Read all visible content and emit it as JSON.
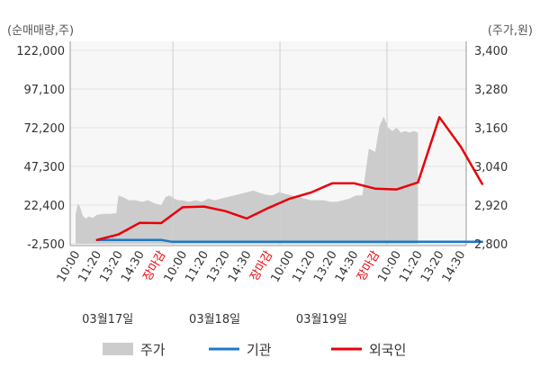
{
  "chart_data": {
    "type": "line",
    "left_unit": "(순매매량,주)",
    "right_unit": "(주가,원)",
    "y_left": {
      "ticks": [
        122000,
        97100,
        72200,
        47300,
        22400,
        -2500
      ],
      "tick_labels": [
        "122,000",
        "97,100",
        "72,200",
        "47,300",
        "22,400",
        "-2,500"
      ],
      "range": [
        -2500,
        122000
      ]
    },
    "y_right": {
      "ticks": [
        3400,
        3280,
        3160,
        3040,
        2920,
        2800
      ],
      "tick_labels": [
        "3,400",
        "3,280",
        "3,160",
        "3,040",
        "2,920",
        "2,800"
      ],
      "range": [
        2800,
        3400
      ]
    },
    "x_ticks": [
      {
        "label": "10:00",
        "pos": 0,
        "color": "#333333"
      },
      {
        "label": "11:20",
        "pos": 1,
        "color": "#333333"
      },
      {
        "label": "13:20",
        "pos": 2,
        "color": "#333333"
      },
      {
        "label": "14:30",
        "pos": 3,
        "color": "#333333"
      },
      {
        "label": "장마감",
        "pos": 4,
        "color": "#e8000b"
      },
      {
        "label": "10:00",
        "pos": 5,
        "color": "#333333"
      },
      {
        "label": "11:20",
        "pos": 6,
        "color": "#333333"
      },
      {
        "label": "13:20",
        "pos": 7,
        "color": "#333333"
      },
      {
        "label": "14:30",
        "pos": 8,
        "color": "#333333"
      },
      {
        "label": "장마감",
        "pos": 9,
        "color": "#e8000b"
      },
      {
        "label": "10:00",
        "pos": 10,
        "color": "#333333"
      },
      {
        "label": "11:20",
        "pos": 11,
        "color": "#333333"
      },
      {
        "label": "13:20",
        "pos": 12,
        "color": "#333333"
      },
      {
        "label": "14:30",
        "pos": 13,
        "color": "#333333"
      },
      {
        "label": "장마감",
        "pos": 14,
        "color": "#e8000b"
      },
      {
        "label": "10:00",
        "pos": 15,
        "color": "#333333"
      },
      {
        "label": "11:20",
        "pos": 16,
        "color": "#333333"
      },
      {
        "label": "13:20",
        "pos": 17,
        "color": "#333333"
      },
      {
        "label": "14:30",
        "pos": 18,
        "color": "#333333"
      }
    ],
    "date_labels": [
      {
        "label": "03월17일",
        "pos": 1.5
      },
      {
        "label": "03월18일",
        "pos": 6.5
      },
      {
        "label": "03월19일",
        "pos": 11.5
      }
    ],
    "series": [
      {
        "name": "주가",
        "axis": "right",
        "kind": "area",
        "color": "#cccccc",
        "x": [
          0,
          0.1,
          0.2,
          0.35,
          0.5,
          0.6,
          0.8,
          1,
          1.3,
          1.6,
          1.9,
          2.0,
          2.2,
          2.5,
          2.8,
          3.1,
          3.4,
          3.7,
          4.0,
          4.2,
          4.4,
          4.6,
          4.8,
          5.0,
          5.3,
          5.6,
          5.9,
          6.2,
          6.5,
          6.8,
          7.1,
          7.4,
          7.7,
          8.0,
          8.3,
          8.6,
          8.9,
          9.2,
          9.5,
          9.8,
          10.1,
          10.4,
          10.7,
          11.0,
          11.3,
          11.6,
          11.9,
          12.2,
          12.5,
          12.8,
          13.1,
          13.4,
          13.7,
          14.0,
          14.2,
          14.4,
          14.6,
          14.8,
          15.0,
          15.2,
          15.4,
          15.6,
          15.8,
          16.0
        ],
        "values": [
          2890,
          2925,
          2915,
          2885,
          2878,
          2885,
          2880,
          2890,
          2893,
          2893,
          2895,
          2950,
          2945,
          2935,
          2935,
          2930,
          2935,
          2925,
          2920,
          2945,
          2950,
          2940,
          2935,
          2935,
          2930,
          2935,
          2930,
          2940,
          2935,
          2940,
          2945,
          2950,
          2955,
          2960,
          2965,
          2958,
          2952,
          2950,
          2960,
          2955,
          2950,
          2945,
          2940,
          2935,
          2935,
          2935,
          2930,
          2930,
          2935,
          2940,
          2950,
          2950,
          3095,
          3085,
          3165,
          3195,
          3160,
          3150,
          3160,
          3145,
          3150,
          3145,
          3150,
          3145
        ]
      },
      {
        "name": "기관",
        "axis": "left",
        "kind": "line",
        "color": "#1e78c8",
        "x": [
          1,
          4,
          4.5,
          19
        ],
        "values": [
          0,
          0,
          -1200,
          -1200
        ]
      },
      {
        "name": "외국인",
        "axis": "left",
        "kind": "line",
        "color": "#e8000b",
        "x": [
          1,
          2,
          3,
          4,
          5,
          6,
          7,
          8,
          9,
          10,
          11,
          12,
          13,
          14,
          15,
          16,
          17,
          18,
          19
        ],
        "values": [
          0,
          3500,
          11000,
          10800,
          21000,
          21500,
          18500,
          13800,
          20500,
          26500,
          30500,
          36500,
          36500,
          33000,
          32500,
          37000,
          79000,
          60000,
          36000
        ]
      }
    ],
    "legend": [
      {
        "name": "주가",
        "color": "#cccccc",
        "kind": "box"
      },
      {
        "name": "기관",
        "color": "#1e78c8",
        "kind": "line"
      },
      {
        "name": "외국인",
        "color": "#e8000b",
        "kind": "line"
      }
    ],
    "legend_position": "bottom",
    "grid": true
  }
}
